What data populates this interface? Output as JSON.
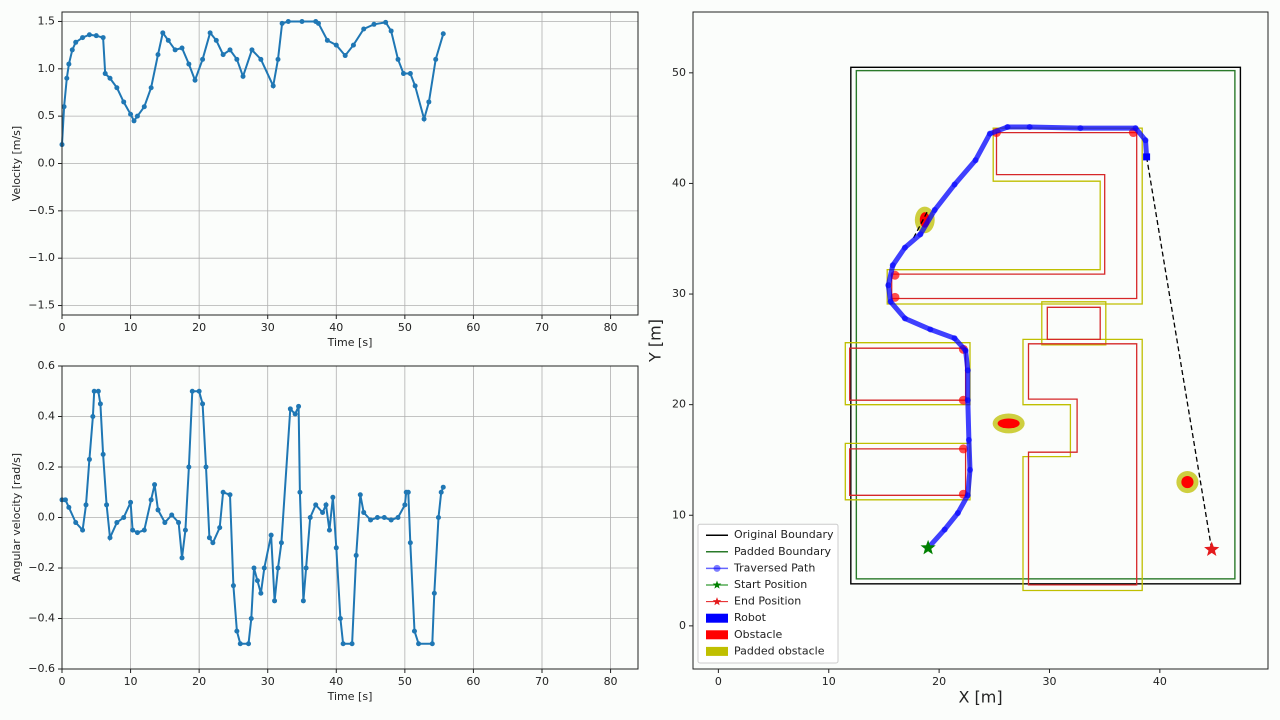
{
  "chart_data": [
    {
      "type": "line",
      "xlabel": "Time [s]",
      "ylabel": "Velocity [m/s]",
      "color": "#1f77b4",
      "grid": true,
      "x": [
        0,
        0.3,
        0.7,
        1,
        1.5,
        2,
        3,
        4,
        5,
        6,
        6.3,
        7,
        8,
        9,
        10,
        10.5,
        11,
        12,
        13,
        14,
        14.7,
        15.5,
        16.5,
        17.5,
        18.5,
        19.4,
        20.5,
        21.6,
        22.5,
        23.5,
        24.5,
        25.5,
        26.4,
        27.7,
        29,
        30.8,
        31.5,
        32.1,
        33,
        35,
        37,
        37.4,
        38.7,
        40,
        41.3,
        42.5,
        44,
        45.5,
        47.2,
        48,
        49,
        49.8,
        50.8,
        51.5,
        52.8,
        53.5,
        54.5,
        55.6
      ],
      "values": [
        0.2,
        0.6,
        0.9,
        1.05,
        1.2,
        1.28,
        1.33,
        1.36,
        1.35,
        1.33,
        0.95,
        0.9,
        0.8,
        0.65,
        0.52,
        0.45,
        0.5,
        0.6,
        0.8,
        1.15,
        1.38,
        1.3,
        1.2,
        1.22,
        1.05,
        0.88,
        1.1,
        1.38,
        1.3,
        1.15,
        1.2,
        1.1,
        0.92,
        1.2,
        1.1,
        0.82,
        1.1,
        1.48,
        1.5,
        1.5,
        1.5,
        1.48,
        1.3,
        1.25,
        1.14,
        1.25,
        1.42,
        1.47,
        1.49,
        1.4,
        1.1,
        0.95,
        0.95,
        0.82,
        0.47,
        0.65,
        1.1,
        1.37
      ],
      "xlim": [
        0,
        84
      ],
      "xticks": [
        0,
        10,
        20,
        30,
        40,
        50,
        60,
        70,
        80
      ],
      "ylim": [
        -1.6,
        1.6
      ],
      "yticks": [
        {
          "value": -1.5,
          "label": "−1.5"
        },
        {
          "value": -1.0,
          "label": "−1.0"
        },
        {
          "value": -0.5,
          "label": "−0.5"
        },
        {
          "value": 0,
          "label": "0.0"
        },
        0.5,
        {
          "value": 1.0,
          "label": "1.0"
        },
        1.5
      ]
    },
    {
      "type": "line",
      "xlabel": "Time [s]",
      "ylabel": "Angular velocity [rad/s]",
      "color": "#1f77b4",
      "grid": true,
      "x": [
        0,
        0.5,
        1,
        2,
        3,
        3.5,
        4,
        4.5,
        4.7,
        5.3,
        5.6,
        6,
        6.5,
        7,
        8,
        9,
        10,
        10.3,
        11,
        12,
        13,
        13.5,
        14,
        15,
        16,
        17,
        17.5,
        18,
        18.5,
        19,
        20,
        20.5,
        21,
        21.5,
        22,
        23,
        23.5,
        24.5,
        25,
        25.5,
        26,
        27.2,
        27.6,
        28,
        28.5,
        29,
        29.5,
        30.5,
        31,
        31.5,
        32,
        33.3,
        34,
        34.5,
        34.7,
        35.2,
        35.6,
        36.2,
        37,
        38,
        38.5,
        39,
        39.5,
        40,
        40.6,
        41,
        42.3,
        42.9,
        43.5,
        44,
        45,
        46,
        47,
        48,
        49,
        50,
        50.2,
        50.5,
        50.8,
        51.4,
        52,
        54,
        54.3,
        54.9,
        55.3,
        55.6
      ],
      "values": [
        0.07,
        0.07,
        0.04,
        -0.02,
        -0.05,
        0.05,
        0.23,
        0.4,
        0.5,
        0.5,
        0.45,
        0.25,
        0.05,
        -0.08,
        -0.02,
        0.0,
        0.06,
        -0.05,
        -0.06,
        -0.05,
        0.07,
        0.13,
        0.03,
        -0.02,
        0.01,
        -0.02,
        -0.16,
        -0.05,
        0.2,
        0.5,
        0.5,
        0.45,
        0.2,
        -0.08,
        -0.1,
        -0.04,
        0.1,
        0.09,
        -0.27,
        -0.45,
        -0.5,
        -0.5,
        -0.4,
        -0.2,
        -0.25,
        -0.3,
        -0.2,
        -0.07,
        -0.33,
        -0.2,
        -0.1,
        0.43,
        0.41,
        0.44,
        0.1,
        -0.33,
        -0.2,
        0.0,
        0.05,
        0.02,
        0.05,
        -0.05,
        0.08,
        -0.12,
        -0.4,
        -0.5,
        -0.5,
        -0.15,
        0.09,
        0.02,
        -0.01,
        0.0,
        0.0,
        -0.01,
        0.0,
        0.05,
        0.1,
        0.1,
        -0.1,
        -0.45,
        -0.5,
        -0.5,
        -0.3,
        0.0,
        0.1,
        0.12
      ],
      "xlim": [
        0,
        84
      ],
      "xticks": [
        0,
        10,
        20,
        30,
        40,
        50,
        60,
        70,
        80
      ],
      "ylim": [
        -0.6,
        0.6
      ],
      "yticks": [
        {
          "value": -0.6,
          "label": "−0.6"
        },
        {
          "value": -0.4,
          "label": "−0.4"
        },
        {
          "value": -0.2,
          "label": "−0.2"
        },
        {
          "value": 0,
          "label": "0.0"
        },
        0.2,
        0.4,
        0.6
      ]
    },
    {
      "type": "map",
      "xlabel": "X [m]",
      "ylabel": "Y [m]",
      "grid": false,
      "legend": "lower left",
      "xlim": [
        -2.3,
        49.8
      ],
      "xticks": [
        0,
        10,
        20,
        30,
        40
      ],
      "ylim": [
        -3.9,
        55.5
      ],
      "yticks": [
        0,
        10,
        20,
        30,
        40,
        50
      ],
      "series": [
        {
          "name": "Original Boundary",
          "style": "rect",
          "color": "#000000",
          "x": [
            12,
            47.3
          ],
          "y": [
            3.8,
            50.5
          ]
        },
        {
          "name": "Padded Boundary",
          "style": "rect",
          "color": "#2a7a2a",
          "x": [
            12.5,
            46.8
          ],
          "y": [
            4.25,
            50.2
          ]
        },
        {
          "name": "Traversed Path",
          "style": "line-marker",
          "color": "#0000ff",
          "x": [
            19.0,
            20.5,
            21.7,
            22.6,
            22.8,
            22.7,
            22.6,
            22.6,
            22.4,
            21.4,
            19.2,
            16.9,
            15.6,
            15.4,
            15.8,
            16.9,
            18.3,
            19.6,
            21.4,
            23.3,
            24.6,
            26.2,
            28.2,
            32.8,
            37.8,
            38.7,
            38.8
          ],
          "y": [
            7.05,
            8.7,
            10.2,
            11.8,
            14.1,
            16.8,
            20.4,
            23.1,
            24.9,
            26.0,
            26.8,
            27.8,
            29.3,
            30.8,
            32.6,
            34.2,
            35.4,
            37.6,
            39.9,
            42.1,
            44.5,
            45.1,
            45.1,
            45.0,
            45.0,
            43.9,
            42.4
          ]
        },
        {
          "name": "Start Position",
          "style": "star",
          "color": "#008000",
          "x": [
            19.0
          ],
          "y": [
            7.05
          ]
        },
        {
          "name": "End Position",
          "style": "star",
          "color": "#e41a1c",
          "x": [
            44.7
          ],
          "y": [
            6.9
          ]
        },
        {
          "name": "Robot",
          "style": "robot",
          "color": "#0000ff",
          "x": [
            38.8
          ],
          "y": [
            42.4
          ]
        },
        {
          "name": "Obstacle",
          "style": "fill",
          "color": "#ff0000",
          "polygons": [
            {
              "x": [
                25.2,
                37.9,
                37.9,
                15.7,
                15.7,
                35.0,
                35.0,
                25.2
              ],
              "y": [
                44.6,
                44.6,
                29.6,
                29.6,
                31.8,
                31.8,
                40.8,
                40.8
              ]
            },
            {
              "x": [
                29.8,
                34.6,
                34.6,
                29.8
              ],
              "y": [
                28.8,
                28.8,
                25.9,
                25.9
              ]
            },
            {
              "x": [
                28.1,
                37.9,
                37.9,
                28.1,
                28.1,
                32.5,
                32.5,
                28.1
              ],
              "y": [
                25.5,
                25.5,
                3.7,
                3.7,
                15.7,
                15.7,
                20.5,
                20.5
              ]
            },
            {
              "x": [
                11.9,
                22.4,
                22.4,
                11.9
              ],
              "y": [
                25.1,
                25.1,
                20.4,
                20.4
              ]
            },
            {
              "x": [
                11.9,
                22.4,
                22.4,
                11.9
              ],
              "y": [
                16.0,
                16.0,
                11.8,
                11.8
              ]
            }
          ],
          "ellipses": [
            {
              "cx": 18.7,
              "cy": 36.7,
              "rx": 0.45,
              "ry": 0.7
            },
            {
              "cx": 26.3,
              "cy": 18.3,
              "rx": 1.0,
              "ry": 0.45
            },
            {
              "cx": 42.5,
              "cy": 13.0,
              "rx": 0.55,
              "ry": 0.55
            }
          ],
          "points": {
            "x": [
              25.2,
              37.6,
              16.0,
              16.0,
              22.2,
              22.2,
              22.2,
              22.2
            ],
            "y": [
              44.6,
              44.6,
              31.7,
              29.7,
              25.0,
              20.4,
              16.0,
              11.9
            ]
          }
        },
        {
          "name": "Padded obstacle",
          "style": "padded-fill",
          "color": "#bfbf00",
          "polygons": [
            {
              "x": [
                24.9,
                38.4,
                38.4,
                15.3,
                15.3,
                34.6,
                34.6,
                24.9
              ],
              "y": [
                45.0,
                45.0,
                29.1,
                29.1,
                32.2,
                32.2,
                40.2,
                40.2
              ]
            },
            {
              "x": [
                29.3,
                35.1,
                35.1,
                29.3
              ],
              "y": [
                29.3,
                29.3,
                25.4,
                25.4
              ]
            },
            {
              "x": [
                27.6,
                38.4,
                38.4,
                27.6,
                27.6,
                31.9,
                31.9,
                27.6
              ],
              "y": [
                25.9,
                25.9,
                3.2,
                3.2,
                15.3,
                15.3,
                20.0,
                20.0
              ]
            },
            {
              "x": [
                11.5,
                22.8,
                22.8,
                11.5
              ],
              "y": [
                25.6,
                25.6,
                20.0,
                20.0
              ]
            },
            {
              "x": [
                11.5,
                22.8,
                22.8,
                11.5
              ],
              "y": [
                16.5,
                16.5,
                11.4,
                11.4
              ]
            }
          ],
          "ellipses": [
            {
              "cx": 18.7,
              "cy": 36.7,
              "rx": 0.9,
              "ry": 1.2
            },
            {
              "cx": 26.3,
              "cy": 18.3,
              "rx": 1.45,
              "ry": 0.9
            },
            {
              "cx": 42.5,
              "cy": 13.0,
              "rx": 1.0,
              "ry": 1.0
            }
          ]
        }
      ],
      "guides": [
        {
          "x": [
            38.8,
            44.7
          ],
          "y": [
            42.4,
            6.9
          ]
        },
        {
          "x": [
            18.9,
            17.6
          ],
          "y": [
            37.4,
            34.9
          ]
        }
      ]
    }
  ]
}
